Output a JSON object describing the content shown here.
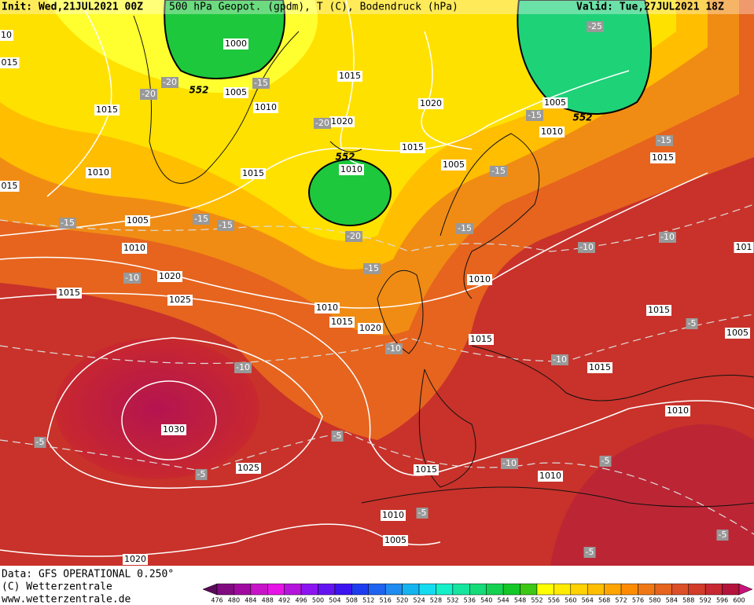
{
  "header": {
    "init": "Init: Wed,21JUL2021 00Z",
    "title": "500 hPa Geopot. (gpdm), T (C), Bodendruck (hPa)",
    "valid": "Valid: Tue,27JUL2021 18Z"
  },
  "map": {
    "isobar_labels": [
      "10",
      "015",
      "015",
      "1000",
      "1015",
      "1005",
      "1010",
      "1020",
      "1015",
      "1020",
      "1005",
      "1010",
      "1015",
      "1005",
      "1015",
      "1010",
      "1010",
      "1015",
      "1005",
      "1010",
      "1020",
      "1015",
      "1025",
      "1010",
      "1010",
      "1015",
      "1020",
      "1015",
      "1015",
      "1005",
      "1015",
      "101",
      "1010",
      "1030",
      "1025",
      "1015",
      "1010",
      "1010",
      "1005",
      "1020"
    ],
    "temperature_labels": [
      "-25",
      "-20",
      "-20",
      "-15",
      "-20",
      "-15",
      "-15",
      "-15",
      "-15",
      "-15",
      "-15",
      "-20",
      "-15",
      "-10",
      "-10",
      "-15",
      "-10",
      "-10",
      "-10",
      "-10",
      "-5",
      "-5",
      "-5",
      "-5",
      "-10",
      "-5",
      "-5",
      "-5",
      "-5"
    ],
    "height_labels": [
      "552",
      "552",
      "552"
    ]
  },
  "footer": {
    "data": "Data: GFS OPERATIONAL 0.250°",
    "copyright": "(C) Wetterzentrale",
    "url": "www.wetterzentrale.de"
  },
  "colorbar": {
    "levels": [
      476,
      480,
      484,
      488,
      492,
      496,
      500,
      504,
      508,
      512,
      516,
      520,
      524,
      528,
      532,
      536,
      540,
      544,
      548,
      552,
      556,
      560,
      564,
      568,
      572,
      576,
      580,
      584,
      588,
      592,
      596,
      600
    ],
    "colors": [
      "#5a0a5a",
      "#800a80",
      "#a00aa0",
      "#c814c8",
      "#e614e6",
      "#b414dc",
      "#8c14f0",
      "#6414f0",
      "#3c14f0",
      "#1e3cf0",
      "#1e64f0",
      "#1e8cf0",
      "#14b4f0",
      "#14dcf0",
      "#14f0c8",
      "#14e6a0",
      "#14dc78",
      "#14d250",
      "#14c828",
      "#3cc814",
      "#ffff00",
      "#ffeb00",
      "#ffd200",
      "#ffbe00",
      "#ffa500",
      "#ff8c00",
      "#f07814",
      "#e6641e",
      "#dc5028",
      "#d23c28",
      "#c82832",
      "#b4143c",
      "#c8147a"
    ]
  }
}
